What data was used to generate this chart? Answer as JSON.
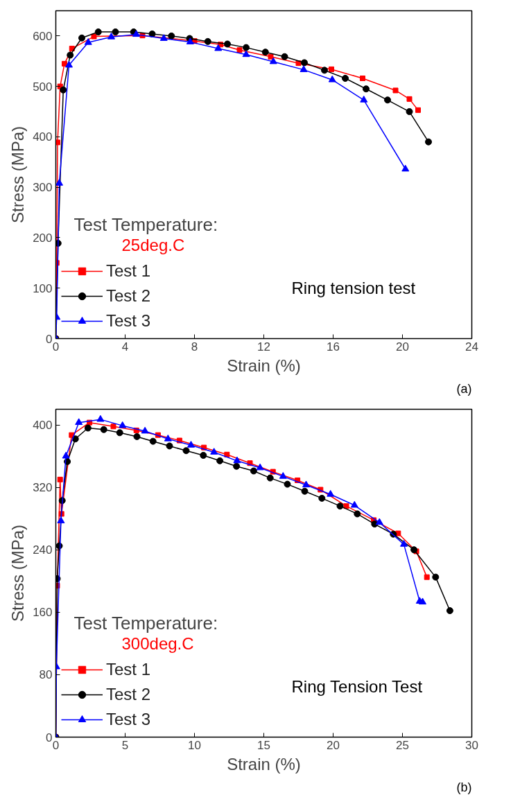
{
  "chart_data": [
    {
      "type": "line",
      "xlabel": "Strain (%)",
      "ylabel": "Stress (MPa)",
      "legend_title": "Test Temperature:",
      "annotations": [
        "25deg.C",
        "Ring tension test",
        "(a)"
      ],
      "xlim": [
        0,
        24
      ],
      "xticks": [
        0,
        4,
        8,
        12,
        16,
        20,
        24
      ],
      "ylim": [
        0,
        650
      ],
      "yticks": [
        0,
        100,
        200,
        300,
        400,
        500,
        600
      ],
      "grid": false,
      "legend": "bottom left",
      "line_style": "solid",
      "series": [
        {
          "name": "Test 1",
          "color": "#ff0000",
          "marker": "square",
          "x": [
            0,
            0.05,
            0.1,
            0.25,
            0.5,
            0.93,
            2.2,
            5,
            8,
            9.5,
            10.6,
            12.4,
            14,
            15.9,
            17.7,
            19.6,
            20.4,
            20.9
          ],
          "values": [
            0,
            150,
            389,
            500,
            545,
            575,
            599,
            601,
            590,
            583,
            572,
            559,
            546,
            534,
            516,
            492,
            475,
            453
          ]
        },
        {
          "name": "Test 2",
          "color": "#000000",
          "marker": "circle",
          "x": [
            0,
            0.13,
            0.43,
            0.83,
            1.5,
            2.45,
            3.44,
            4.49,
            5.56,
            6.67,
            7.72,
            8.77,
            9.9,
            10.98,
            12.09,
            13.2,
            14.34,
            15.5,
            16.7,
            17.9,
            19.14,
            20.4,
            21.5
          ],
          "values": [
            0,
            189,
            493,
            562,
            596,
            608,
            608,
            608,
            604,
            600,
            595,
            589,
            584,
            577,
            568,
            559,
            547,
            532,
            516,
            495,
            473,
            450,
            390
          ]
        },
        {
          "name": "Test 3",
          "color": "#0000ff",
          "marker": "triangle",
          "x": [
            0,
            0.05,
            0.2,
            0.76,
            1.87,
            3.2,
            4.64,
            6.23,
            7.75,
            9.37,
            10.98,
            12.55,
            14.3,
            15.95,
            17.77,
            20.17
          ],
          "values": [
            0,
            42,
            308,
            542,
            587,
            598,
            603,
            595,
            588,
            575,
            563,
            549,
            533,
            513,
            473,
            336
          ]
        }
      ]
    },
    {
      "type": "line",
      "xlabel": "Strain (%)",
      "ylabel": "Stress (MPa)",
      "legend_title": "Test Temperature:",
      "annotations": [
        "300deg.C",
        "Ring Tension Test",
        "(b)"
      ],
      "xlim": [
        0,
        30
      ],
      "xticks": [
        0,
        5,
        10,
        15,
        20,
        25,
        30
      ],
      "ylim": [
        0,
        420
      ],
      "yticks": [
        0,
        80,
        160,
        240,
        320,
        400
      ],
      "grid": false,
      "legend": "bottom left",
      "line_style": "solid",
      "series": [
        {
          "name": "Test 1",
          "color": "#ff0000",
          "marker": "square",
          "x": [
            0,
            0.1,
            0.31,
            0.41,
            1.14,
            2.43,
            4.15,
            5.81,
            7.37,
            8.92,
            10.68,
            12.34,
            14.0,
            15.66,
            17.43,
            19.09,
            20.95,
            22.93,
            24.69,
            26.0,
            26.76
          ],
          "values": [
            0,
            194,
            330,
            286,
            387,
            403,
            398,
            393,
            387,
            380,
            371,
            362,
            351,
            340,
            329,
            317,
            296,
            278,
            261,
            238,
            205
          ]
        },
        {
          "name": "Test 2",
          "color": "#000000",
          "marker": "circle",
          "x": [
            0,
            0.1,
            0.25,
            0.46,
            0.83,
            1.41,
            2.32,
            3.46,
            4.61,
            5.85,
            7.01,
            8.2,
            9.4,
            10.64,
            11.83,
            13.03,
            14.27,
            15.46,
            16.7,
            17.95,
            19.19,
            20.5,
            21.74,
            22.99,
            24.34,
            25.83,
            27.39,
            28.42
          ],
          "values": [
            0,
            203,
            245,
            303,
            353,
            382,
            396,
            394,
            390,
            385,
            379,
            373,
            367,
            361,
            354,
            347,
            341,
            332,
            324,
            315,
            306,
            296,
            286,
            273,
            260,
            240,
            205,
            162
          ]
        },
        {
          "name": "Test 3",
          "color": "#0000ff",
          "marker": "triangle",
          "x": [
            0,
            0.04,
            0.37,
            0.73,
            1.66,
            3.22,
            4.81,
            6.43,
            8.09,
            9.75,
            11.41,
            13.07,
            14.73,
            16.39,
            18.05,
            19.81,
            21.54,
            23.34,
            25.1,
            26.24,
            26.45
          ],
          "values": [
            0,
            90,
            277,
            360,
            403,
            407,
            399,
            392,
            382,
            374,
            365,
            354,
            345,
            334,
            323,
            311,
            297,
            275,
            247,
            174,
            173
          ]
        }
      ]
    }
  ]
}
